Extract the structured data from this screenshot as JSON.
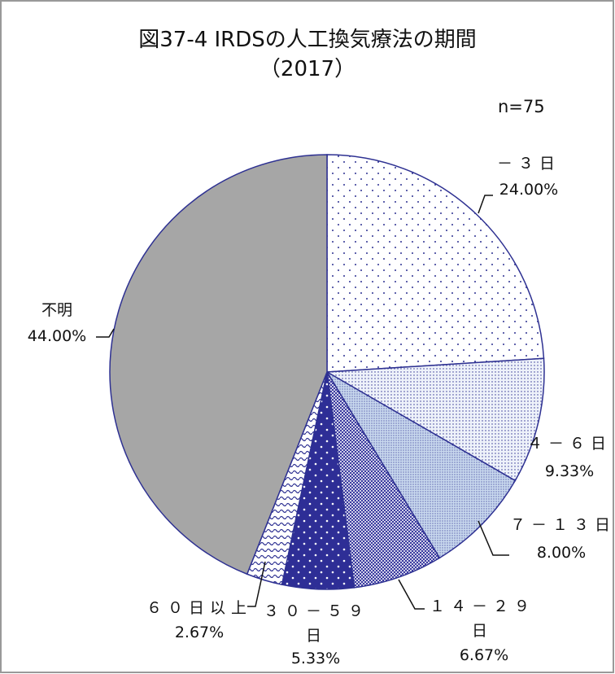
{
  "chart_data": {
    "type": "pie",
    "title": "図37-4 IRDSの人工換気療法の期間",
    "subtitle": "（2017）",
    "annotation": "n=75",
    "categories": [
      "－３日",
      "４－６日",
      "７－１３日",
      "１４－２９日",
      "３０－５９日",
      "６０日以上",
      "不明"
    ],
    "values": [
      24,
      9.33,
      8,
      6.67,
      5.33,
      2.67,
      44
    ],
    "value_labels": [
      "24.00%",
      "9.33%",
      "8.00%",
      "6.67%",
      "5.33%",
      "2.67%",
      "44.00%"
    ],
    "colors": [
      "#ffffff",
      "#eef2fa",
      "#c9d9ee",
      "#3b3ba0",
      "#2e2e96",
      "#ffffff",
      "#a6a6a6"
    ],
    "edge_color": "#2e3192"
  }
}
